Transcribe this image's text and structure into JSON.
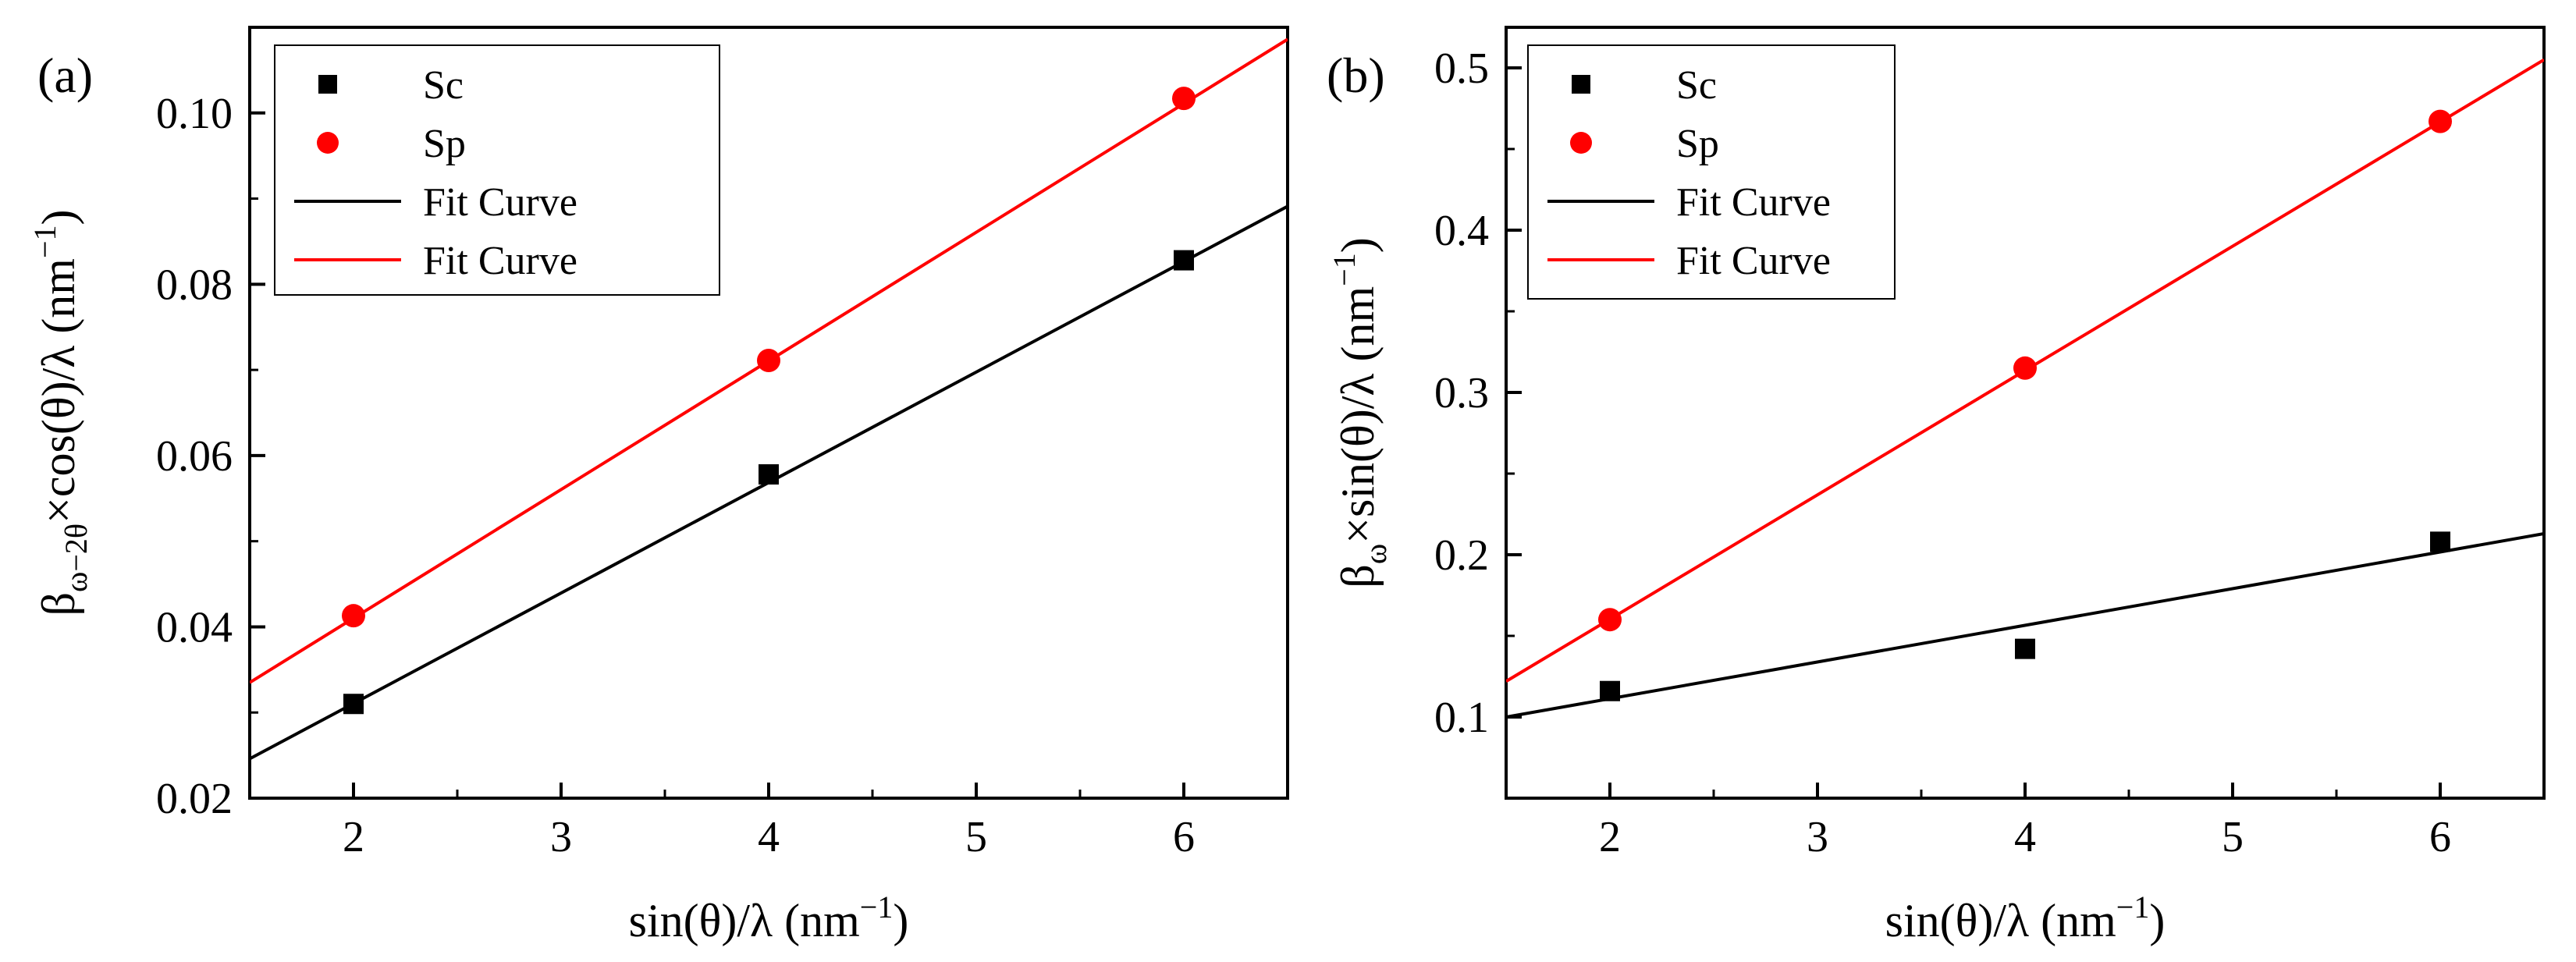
{
  "chart_data": [
    {
      "panel_label": "(a)",
      "type": "scatter",
      "xlabel": {
        "main": "sin(θ)/λ (nm",
        "sup": "−1",
        "end": ")"
      },
      "ylabel": {
        "beta": "β",
        "sub": "ω−2θ",
        "main": "×cos(θ)/λ (nm",
        "sup": "−1",
        "end": ")"
      },
      "xlim": [
        1.5,
        6.5
      ],
      "ylim": [
        0.02,
        0.11
      ],
      "xticks": [
        2,
        3,
        4,
        5,
        6
      ],
      "xtick_labels": [
        "2",
        "3",
        "4",
        "5",
        "6"
      ],
      "yticks": [
        0.02,
        0.04,
        0.06,
        0.08,
        0.1
      ],
      "ytick_labels": [
        "0.02",
        "0.04",
        "0.06",
        "0.08",
        "0.10"
      ],
      "grid": false,
      "legend": "top-left",
      "series": [
        {
          "name": "Sc",
          "kind": "points",
          "marker": "square",
          "color": "#000000",
          "x": [
            2,
            4,
            6
          ],
          "y": [
            0.031,
            0.0578,
            0.0828
          ]
        },
        {
          "name": "Sp",
          "kind": "points",
          "marker": "circle",
          "color": "#ff0000",
          "x": [
            2,
            4,
            6
          ],
          "y": [
            0.0413,
            0.0711,
            0.1017
          ]
        },
        {
          "name": "Fit Curve",
          "kind": "line",
          "color": "#000000",
          "fit_of": "Sc",
          "x": [
            1.5,
            6.5
          ],
          "y": [
            0.0246,
            0.0891
          ]
        },
        {
          "name": "Fit Curve",
          "kind": "line",
          "color": "#ff0000",
          "fit_of": "Sp",
          "x": [
            1.5,
            6.5
          ],
          "y": [
            0.0335,
            0.1086
          ]
        }
      ]
    },
    {
      "panel_label": "(b)",
      "type": "scatter",
      "xlabel": {
        "main": "sin(θ)/λ (nm",
        "sup": "−1",
        "end": ")"
      },
      "ylabel": {
        "beta": "β",
        "sub": "ω",
        "main": "×sin(θ)/λ (nm",
        "sup": "−1",
        "end": ")"
      },
      "xlim": [
        1.5,
        6.5
      ],
      "ylim": [
        0.05,
        0.525
      ],
      "xticks": [
        2,
        3,
        4,
        5,
        6
      ],
      "xtick_labels": [
        "2",
        "3",
        "4",
        "5",
        "6"
      ],
      "yticks": [
        0.1,
        0.2,
        0.3,
        0.4,
        0.5
      ],
      "ytick_labels": [
        "0.1",
        "0.2",
        "0.3",
        "0.4",
        "0.5"
      ],
      "grid": false,
      "legend": "top-left",
      "series": [
        {
          "name": "Sc",
          "kind": "points",
          "marker": "square",
          "color": "#000000",
          "x": [
            2,
            4,
            6
          ],
          "y": [
            0.116,
            0.142,
            0.208
          ]
        },
        {
          "name": "Sp",
          "kind": "points",
          "marker": "circle",
          "color": "#ff0000",
          "x": [
            2,
            4,
            6
          ],
          "y": [
            0.16,
            0.315,
            0.467
          ]
        },
        {
          "name": "Fit Curve",
          "kind": "line",
          "color": "#000000",
          "fit_of": "Sc",
          "x": [
            1.5,
            6.5
          ],
          "y": [
            0.1,
            0.213
          ]
        },
        {
          "name": "Fit Curve",
          "kind": "line",
          "color": "#ff0000",
          "fit_of": "Sp",
          "x": [
            1.5,
            6.5
          ],
          "y": [
            0.122,
            0.505
          ]
        }
      ]
    }
  ]
}
